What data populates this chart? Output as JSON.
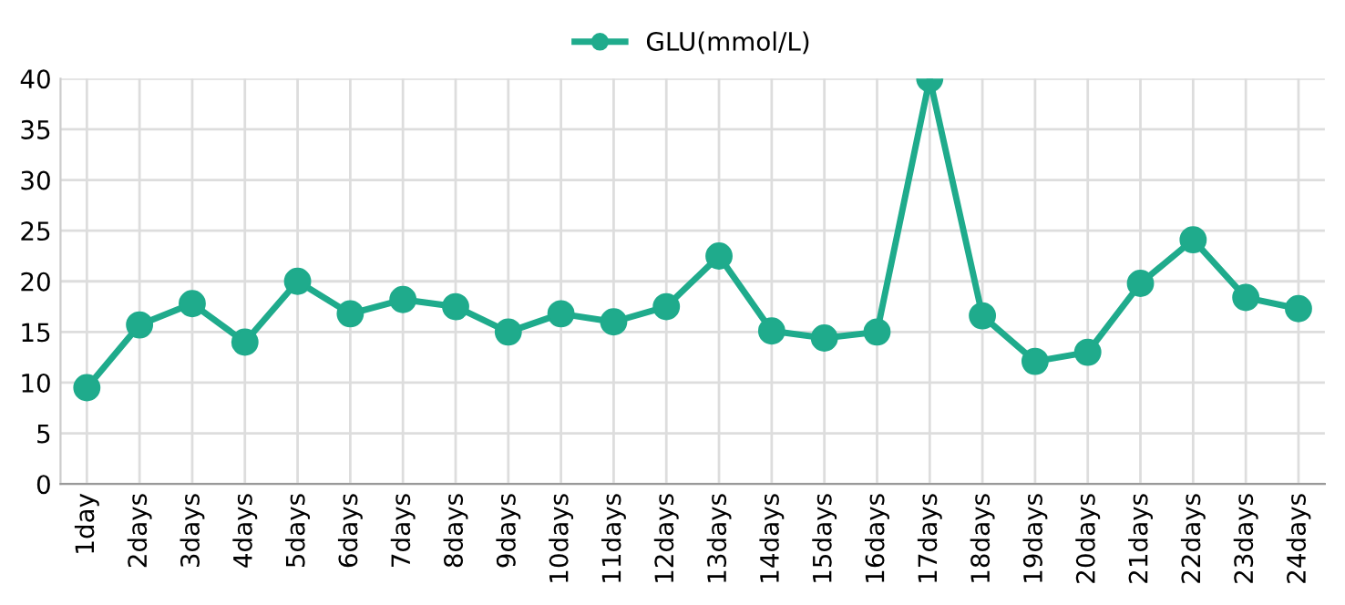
{
  "chart_data": {
    "type": "line",
    "categories": [
      "1day",
      "2days",
      "3days",
      "4days",
      "5days",
      "6days",
      "7days",
      "8days",
      "9days",
      "10days",
      "11days",
      "12days",
      "13days",
      "14days",
      "15days",
      "16days",
      "17days",
      "18days",
      "19days",
      "20days",
      "21days",
      "22days",
      "23days",
      "24days"
    ],
    "series": [
      {
        "name": "GLU(mmol/L)",
        "color": "#1fab8c",
        "values": [
          9.5,
          15.7,
          17.8,
          14.0,
          20.0,
          16.8,
          18.2,
          17.5,
          15.0,
          16.8,
          16.0,
          17.5,
          22.5,
          15.1,
          14.4,
          15.0,
          40,
          16.6,
          12.1,
          13.0,
          19.8,
          24.1,
          18.4,
          17.3
        ]
      }
    ],
    "ylim": [
      0,
      40
    ],
    "yticks": [
      0,
      5,
      10,
      15,
      20,
      25,
      30,
      35,
      40
    ],
    "grid": true,
    "legend": "top",
    "marker": "circle",
    "line_style": "solid"
  }
}
